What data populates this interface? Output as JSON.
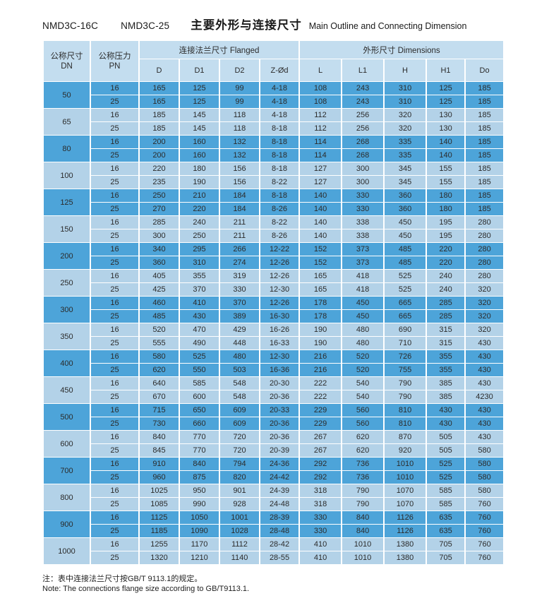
{
  "title": {
    "model1": "NMD3C-16C",
    "model2": "NMD3C-25",
    "cn": "主要外形与连接尺寸",
    "en": "Main Outline and Connecting Dimension"
  },
  "table": {
    "col_dn_cn": "公称尺寸",
    "col_dn_en": "DN",
    "col_pn_cn": "公称压力",
    "col_pn_en": "PN",
    "group_flanged": "连接法兰尺寸 Flanged",
    "group_dimensions": "外形尺寸 Dimensions",
    "flanged_cols": [
      "D",
      "D1",
      "D2",
      "Z-Ød"
    ],
    "dimension_cols": [
      "L",
      "L1",
      "H",
      "H1",
      "Do"
    ],
    "rows": [
      {
        "dn": "50",
        "shade": "dark",
        "pn_rows": [
          {
            "pn": "16",
            "values": [
              "165",
              "125",
              "99",
              "4-18",
              "108",
              "243",
              "310",
              "125",
              "185"
            ]
          },
          {
            "pn": "25",
            "values": [
              "165",
              "125",
              "99",
              "4-18",
              "108",
              "243",
              "310",
              "125",
              "185"
            ]
          }
        ]
      },
      {
        "dn": "65",
        "shade": "light",
        "pn_rows": [
          {
            "pn": "16",
            "values": [
              "185",
              "145",
              "118",
              "4-18",
              "112",
              "256",
              "320",
              "130",
              "185"
            ]
          },
          {
            "pn": "25",
            "values": [
              "185",
              "145",
              "118",
              "8-18",
              "112",
              "256",
              "320",
              "130",
              "185"
            ]
          }
        ]
      },
      {
        "dn": "80",
        "shade": "dark",
        "pn_rows": [
          {
            "pn": "16",
            "values": [
              "200",
              "160",
              "132",
              "8-18",
              "114",
              "268",
              "335",
              "140",
              "185"
            ]
          },
          {
            "pn": "25",
            "values": [
              "200",
              "160",
              "132",
              "8-18",
              "114",
              "268",
              "335",
              "140",
              "185"
            ]
          }
        ]
      },
      {
        "dn": "100",
        "shade": "light",
        "pn_rows": [
          {
            "pn": "16",
            "values": [
              "220",
              "180",
              "156",
              "8-18",
              "127",
              "300",
              "345",
              "155",
              "185"
            ]
          },
          {
            "pn": "25",
            "values": [
              "235",
              "190",
              "156",
              "8-22",
              "127",
              "300",
              "345",
              "155",
              "185"
            ]
          }
        ]
      },
      {
        "dn": "125",
        "shade": "dark",
        "pn_rows": [
          {
            "pn": "16",
            "values": [
              "250",
              "210",
              "184",
              "8-18",
              "140",
              "330",
              "360",
              "180",
              "185"
            ]
          },
          {
            "pn": "25",
            "values": [
              "270",
              "220",
              "184",
              "8-26",
              "140",
              "330",
              "360",
              "180",
              "185"
            ]
          }
        ]
      },
      {
        "dn": "150",
        "shade": "light",
        "pn_rows": [
          {
            "pn": "16",
            "values": [
              "285",
              "240",
              "211",
              "8-22",
              "140",
              "338",
              "450",
              "195",
              "280"
            ]
          },
          {
            "pn": "25",
            "values": [
              "300",
              "250",
              "211",
              "8-26",
              "140",
              "338",
              "450",
              "195",
              "280"
            ]
          }
        ]
      },
      {
        "dn": "200",
        "shade": "dark",
        "pn_rows": [
          {
            "pn": "16",
            "values": [
              "340",
              "295",
              "266",
              "12-22",
              "152",
              "373",
              "485",
              "220",
              "280"
            ]
          },
          {
            "pn": "25",
            "values": [
              "360",
              "310",
              "274",
              "12-26",
              "152",
              "373",
              "485",
              "220",
              "280"
            ]
          }
        ]
      },
      {
        "dn": "250",
        "shade": "light",
        "pn_rows": [
          {
            "pn": "16",
            "values": [
              "405",
              "355",
              "319",
              "12-26",
              "165",
              "418",
              "525",
              "240",
              "280"
            ]
          },
          {
            "pn": "25",
            "values": [
              "425",
              "370",
              "330",
              "12-30",
              "165",
              "418",
              "525",
              "240",
              "320"
            ]
          }
        ]
      },
      {
        "dn": "300",
        "shade": "dark",
        "pn_rows": [
          {
            "pn": "16",
            "values": [
              "460",
              "410",
              "370",
              "12-26",
              "178",
              "450",
              "665",
              "285",
              "320"
            ]
          },
          {
            "pn": "25",
            "values": [
              "485",
              "430",
              "389",
              "16-30",
              "178",
              "450",
              "665",
              "285",
              "320"
            ]
          }
        ]
      },
      {
        "dn": "350",
        "shade": "light",
        "pn_rows": [
          {
            "pn": "16",
            "values": [
              "520",
              "470",
              "429",
              "16-26",
              "190",
              "480",
              "690",
              "315",
              "320"
            ]
          },
          {
            "pn": "25",
            "values": [
              "555",
              "490",
              "448",
              "16-33",
              "190",
              "480",
              "710",
              "315",
              "430"
            ]
          }
        ]
      },
      {
        "dn": "400",
        "shade": "dark",
        "pn_rows": [
          {
            "pn": "16",
            "values": [
              "580",
              "525",
              "480",
              "12-30",
              "216",
              "520",
              "726",
              "355",
              "430"
            ]
          },
          {
            "pn": "25",
            "values": [
              "620",
              "550",
              "503",
              "16-36",
              "216",
              "520",
              "755",
              "355",
              "430"
            ]
          }
        ]
      },
      {
        "dn": "450",
        "shade": "light",
        "pn_rows": [
          {
            "pn": "16",
            "values": [
              "640",
              "585",
              "548",
              "20-30",
              "222",
              "540",
              "790",
              "385",
              "430"
            ]
          },
          {
            "pn": "25",
            "values": [
              "670",
              "600",
              "548",
              "20-36",
              "222",
              "540",
              "790",
              "385",
              "4230"
            ]
          }
        ]
      },
      {
        "dn": "500",
        "shade": "dark",
        "pn_rows": [
          {
            "pn": "16",
            "values": [
              "715",
              "650",
              "609",
              "20-33",
              "229",
              "560",
              "810",
              "430",
              "430"
            ]
          },
          {
            "pn": "25",
            "values": [
              "730",
              "660",
              "609",
              "20-36",
              "229",
              "560",
              "810",
              "430",
              "430"
            ]
          }
        ]
      },
      {
        "dn": "600",
        "shade": "light",
        "pn_rows": [
          {
            "pn": "16",
            "values": [
              "840",
              "770",
              "720",
              "20-36",
              "267",
              "620",
              "870",
              "505",
              "430"
            ]
          },
          {
            "pn": "25",
            "values": [
              "845",
              "770",
              "720",
              "20-39",
              "267",
              "620",
              "920",
              "505",
              "580"
            ]
          }
        ]
      },
      {
        "dn": "700",
        "shade": "dark",
        "pn_rows": [
          {
            "pn": "16",
            "values": [
              "910",
              "840",
              "794",
              "24-36",
              "292",
              "736",
              "1010",
              "525",
              "580"
            ]
          },
          {
            "pn": "25",
            "values": [
              "960",
              "875",
              "820",
              "24-42",
              "292",
              "736",
              "1010",
              "525",
              "580"
            ]
          }
        ]
      },
      {
        "dn": "800",
        "shade": "light",
        "pn_rows": [
          {
            "pn": "16",
            "values": [
              "1025",
              "950",
              "901",
              "24-39",
              "318",
              "790",
              "1070",
              "585",
              "580"
            ]
          },
          {
            "pn": "25",
            "values": [
              "1085",
              "990",
              "928",
              "24-48",
              "318",
              "790",
              "1070",
              "585",
              "760"
            ]
          }
        ]
      },
      {
        "dn": "900",
        "shade": "dark",
        "pn_rows": [
          {
            "pn": "16",
            "values": [
              "1125",
              "1050",
              "1001",
              "28-39",
              "330",
              "840",
              "1126",
              "635",
              "760"
            ]
          },
          {
            "pn": "25",
            "values": [
              "1185",
              "1090",
              "1028",
              "28-48",
              "330",
              "840",
              "1126",
              "635",
              "760"
            ]
          }
        ]
      },
      {
        "dn": "1000",
        "shade": "light",
        "pn_rows": [
          {
            "pn": "16",
            "values": [
              "1255",
              "1170",
              "1112",
              "28-42",
              "410",
              "1010",
              "1380",
              "705",
              "760"
            ]
          },
          {
            "pn": "25",
            "values": [
              "1320",
              "1210",
              "1140",
              "28-55",
              "410",
              "1010",
              "1380",
              "705",
              "760"
            ]
          }
        ]
      }
    ]
  },
  "notes": {
    "cn": "注：表中连接法兰尺寸按GB/T 9113.1的规定。",
    "en": "Note: The connections flange size according to GB/T9113.1."
  },
  "colors": {
    "dark_row": "#4da4d9",
    "light_row": "#b3d2e8",
    "header_bg": "#c3ddef"
  }
}
